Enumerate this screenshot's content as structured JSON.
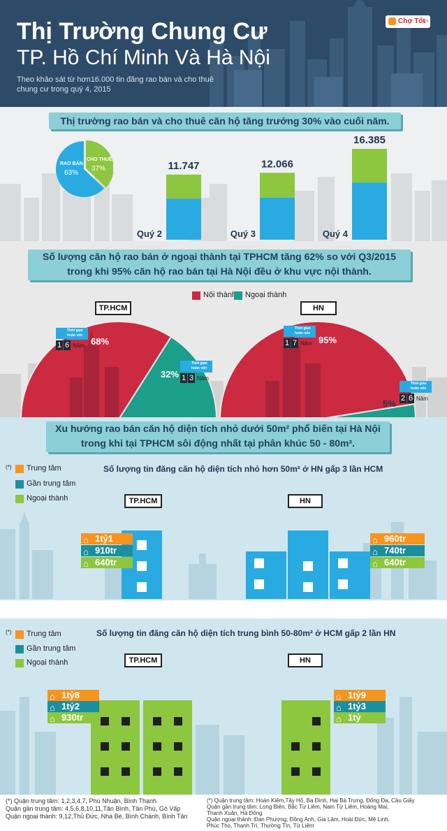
{
  "header": {
    "title": "Thị Trường Chung Cư",
    "subtitle": "TP. Hồ Chí Minh Và Hà Nội",
    "description_line1": "Theo khảo sát từ hơn16.000 tin đăng rao bán và cho thuê",
    "description_line2": "chung cư trong quý 4, 2015",
    "logo_text": "Chợ Tốt",
    "logo_suffix": ".vn"
  },
  "section1": {
    "banner": "Thị trường rao bán và cho thuê căn hộ tăng trưởng 30% vào cuối năm.",
    "pie_sell_label": "RAO BÁN",
    "pie_sell_value": "63%",
    "pie_rent_label": "CHO THUÊ",
    "pie_rent_value": "37%"
  },
  "section2": {
    "banner_line1": "Số lượng căn hộ rao bán ở ngoại thành tại TPHCM tăng 62% so với Q3/2015",
    "banner_line2": "trong khi 95% căn hộ rao bán tại Hà Nội đều ở khu vực nội thành.",
    "legend_inner": "Nội thành",
    "legend_outer": "Ngoại thành",
    "city_hcm": "TP.HCM",
    "city_hn": "HN",
    "payback_label_a": "Thời gian",
    "payback_label_b": "hoàn vốn",
    "year_unit": "Năm",
    "hcm_inner_pct": "68%",
    "hcm_outer_pct": "32%",
    "hn_inner_pct": "95%",
    "hn_outer_pct": "5%",
    "hcm_inner_years": [
      "1",
      "6"
    ],
    "hcm_outer_years": [
      "1",
      "3"
    ],
    "hn_inner_years": [
      "1",
      "7"
    ],
    "hn_outer_years": [
      "2",
      "6"
    ]
  },
  "section3": {
    "banner_line1": "Xu hướng rao bán căn hộ diện tích nhỏ dưới 50m² phổ biến tại Hà Nội",
    "banner_line2": "trong khi tại TPHCM sôi động nhất tại phân khúc 50 - 80m².",
    "legend_star": "(*)",
    "legend_center": "Trung tâm",
    "legend_near": "Gần trung tâm",
    "legend_suburb": "Ngoại thành",
    "small_title": "Số lượng tin đăng căn hộ diện tích nhỏ hơn 50m² ở HN gấp 3 lần HCM",
    "medium_title": "Số lượng tin đăng căn hộ diện tích trung bình 50-80m² ở HCM gấp 2 lần HN",
    "city_hcm": "TP.HCM",
    "city_hn": "HN",
    "small_hcm_prices": [
      "1tỷ1",
      "910tr",
      "640tr"
    ],
    "small_hn_prices": [
      "960tr",
      "740tr",
      "640tr"
    ],
    "medium_hcm_prices": [
      "1tỷ8",
      "1tỷ2",
      "930tr"
    ],
    "medium_hn_prices": [
      "1tỷ9",
      "1tỷ3",
      "1tỷ"
    ]
  },
  "footer": {
    "hcm_notes": [
      "(*) Quận trung tâm: 1,2,3,4,7, Phú Nhuận, Bình Thạnh",
      "Quận gần trung tâm: 4,5,6,8,10,11,Tân Bình, Tân Phú, Gò Vấp",
      "Quận ngoại thành: 9,12,Thủ Đức, Nhà Bè, Bình Chánh, Bình Tân"
    ],
    "hn_notes": [
      "(*) Quận trung tâm: Hoàn Kiếm,Tây Hồ, Ba Đình, Hai Bà Trưng, Đống Đa, Cầu Giấy",
      "Quận gần trung tâm: Long Biên, Bắc Từ Liêm, Nam Từ Liêm, Hoàng Mai,",
      "Thanh Xuân, Hà Đông",
      "Quận ngoại thành: Đan Phượng, Đông Anh, Gia Lâm, Hoài Đức, Mê Linh,",
      "Phúc Thọ, Thanh Trì, Thường Tín, Từ Liêm"
    ]
  },
  "colors": {
    "header_bg": "#2d4a68",
    "banner": "#8ccfd6",
    "rent_green": "#8dc63f",
    "sell_blue": "#29abe2",
    "inner_red": "#cc2a41",
    "outer_teal": "#1b9e8a",
    "center_orange": "#f7941d",
    "near_teal": "#1b8f9e",
    "suburb_green": "#8dc63f",
    "building_blue": "#29abe2"
  },
  "chart_data": [
    {
      "type": "pie",
      "title": "",
      "categories": [
        "RAO BÁN",
        "CHO THUÊ"
      ],
      "values": [
        63,
        37
      ]
    },
    {
      "type": "bar",
      "title": "Thị trường rao bán và cho thuê căn hộ tăng trưởng 30% vào cuối năm.",
      "categories": [
        "Quý 2",
        "Quý 3",
        "Quý 4"
      ],
      "values": [
        11747,
        12066,
        16385
      ],
      "value_labels": [
        "11.747",
        "12.066",
        "16.385"
      ],
      "stack_fractions": {
        "RAO BÁN": 0.63,
        "CHO THUÊ": 0.37
      }
    },
    {
      "type": "pie",
      "title": "TP.HCM",
      "categories": [
        "Nội thành",
        "Ngoại thành"
      ],
      "values": [
        68,
        32
      ],
      "payback_years": [
        16,
        13
      ]
    },
    {
      "type": "pie",
      "title": "HN",
      "categories": [
        "Nội thành",
        "Ngoại thành"
      ],
      "values": [
        95,
        5
      ],
      "payback_years": [
        17,
        26
      ]
    }
  ]
}
